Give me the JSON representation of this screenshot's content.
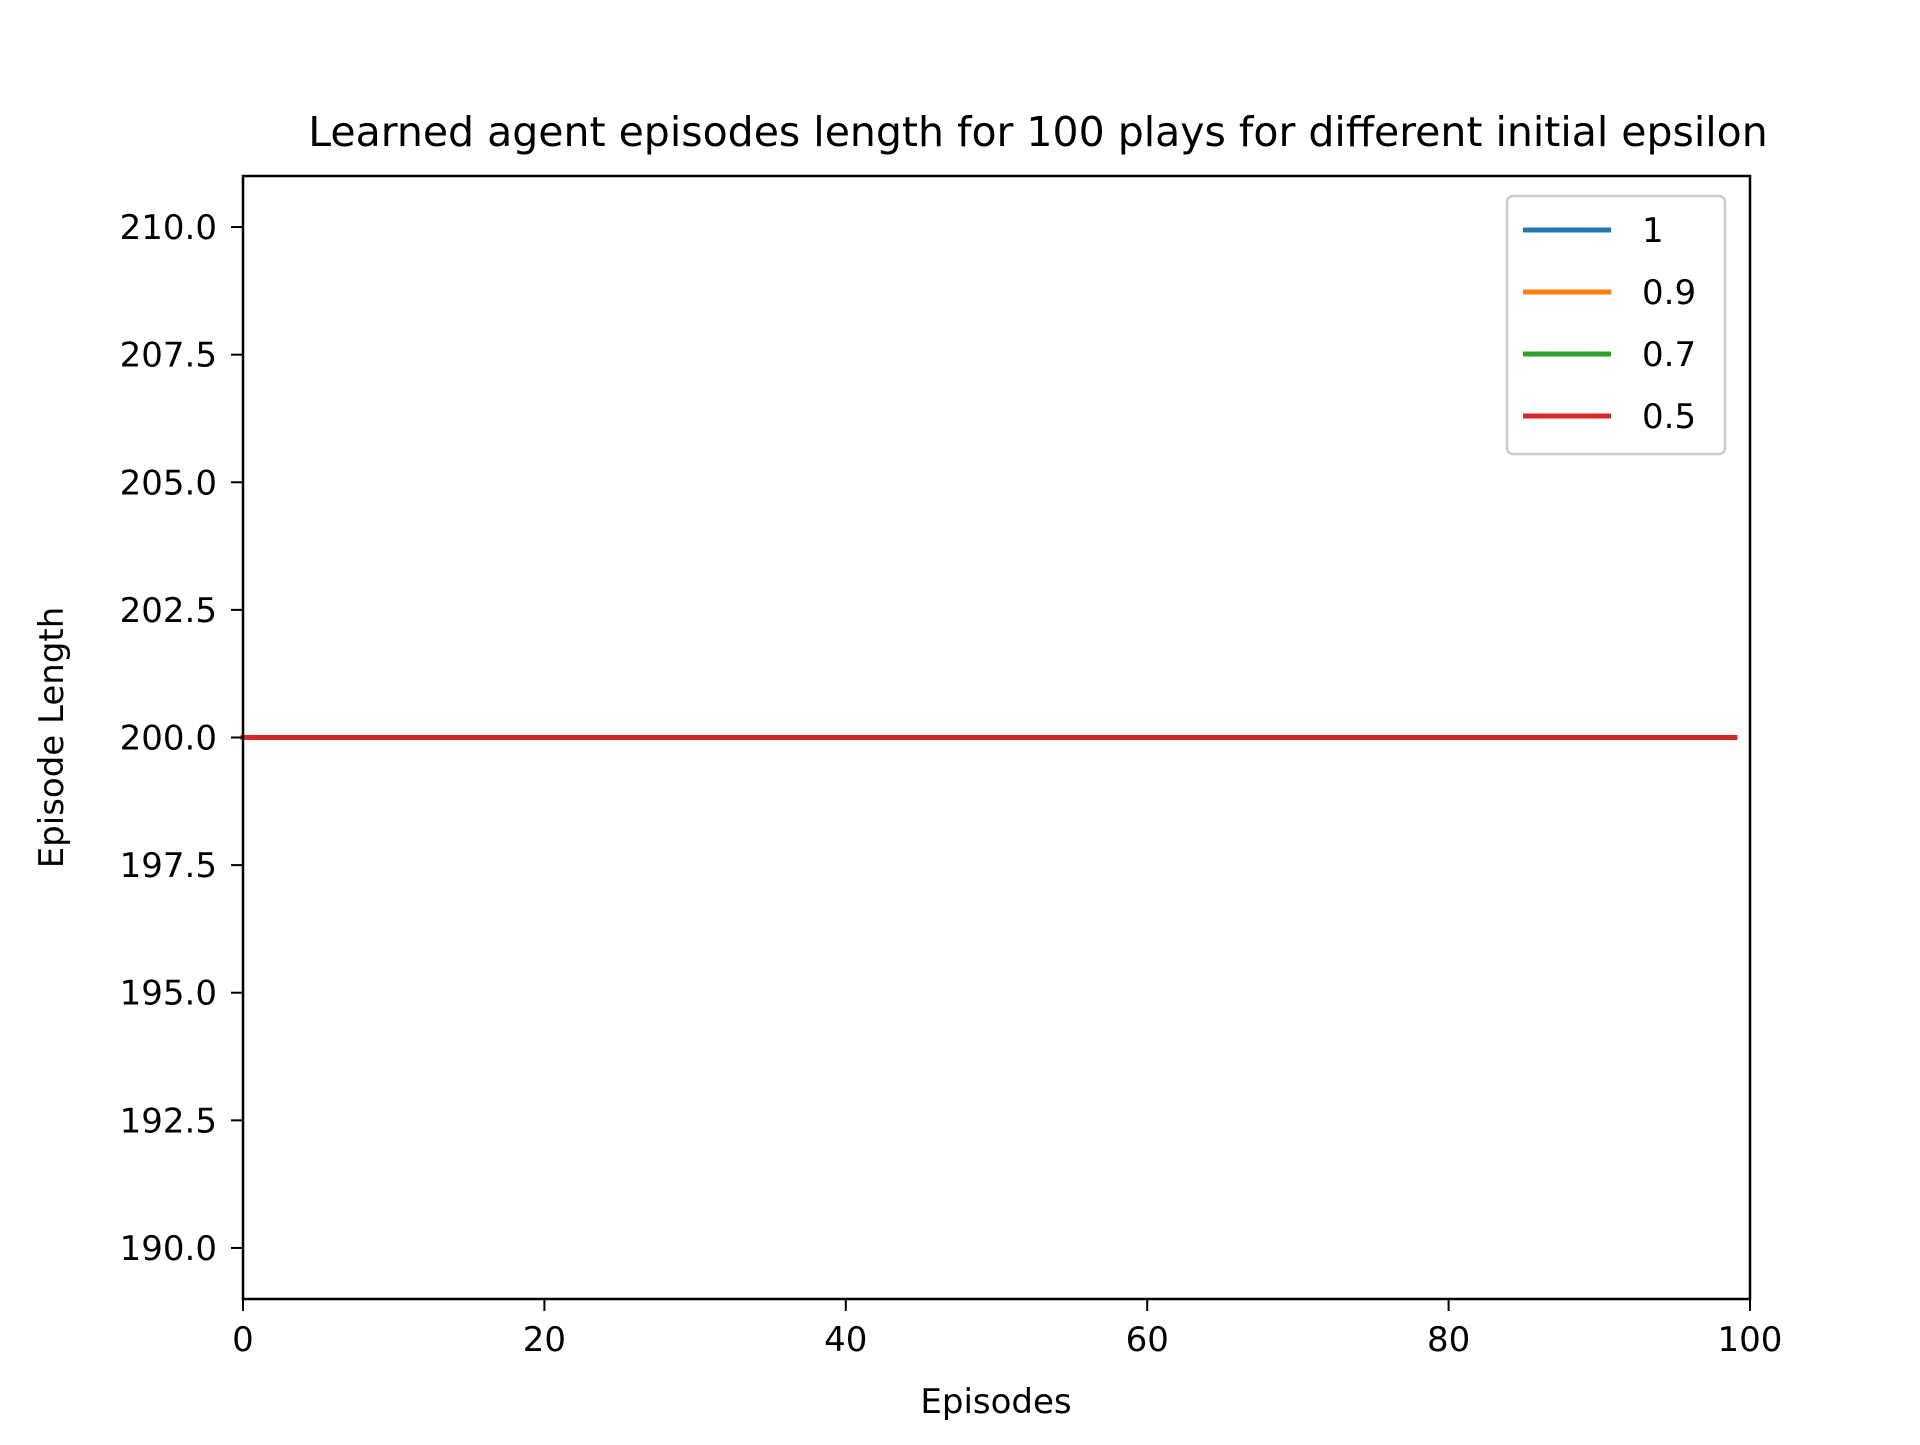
{
  "chart_data": {
    "type": "line",
    "title": "Learned agent episodes length for 100 plays for different initial epsilon",
    "xlabel": "Episodes",
    "ylabel": "Episode Length",
    "xlim": [
      0,
      100
    ],
    "ylim": [
      189,
      211
    ],
    "x_ticks": [
      0,
      20,
      40,
      60,
      80,
      100
    ],
    "x_tick_labels": [
      "0",
      "20",
      "40",
      "60",
      "80",
      "100"
    ],
    "y_ticks": [
      190.0,
      192.5,
      195.0,
      197.5,
      200.0,
      202.5,
      205.0,
      207.5,
      210.0
    ],
    "y_tick_labels": [
      "190.0",
      "192.5",
      "195.0",
      "197.5",
      "200.0",
      "202.5",
      "205.0",
      "207.5",
      "210.0"
    ],
    "grid": false,
    "legend_position": "top-right",
    "series": [
      {
        "name": "1",
        "color": "#1f77b4",
        "x": [
          0,
          99
        ],
        "y": [
          200,
          200
        ]
      },
      {
        "name": "0.9",
        "color": "#ff7f0e",
        "x": [
          0,
          99
        ],
        "y": [
          200,
          200
        ]
      },
      {
        "name": "0.7",
        "color": "#2ca02c",
        "x": [
          0,
          99
        ],
        "y": [
          200,
          200
        ]
      },
      {
        "name": "0.5",
        "color": "#d62728",
        "x": [
          0,
          99
        ],
        "y": [
          200,
          200
        ]
      }
    ]
  }
}
